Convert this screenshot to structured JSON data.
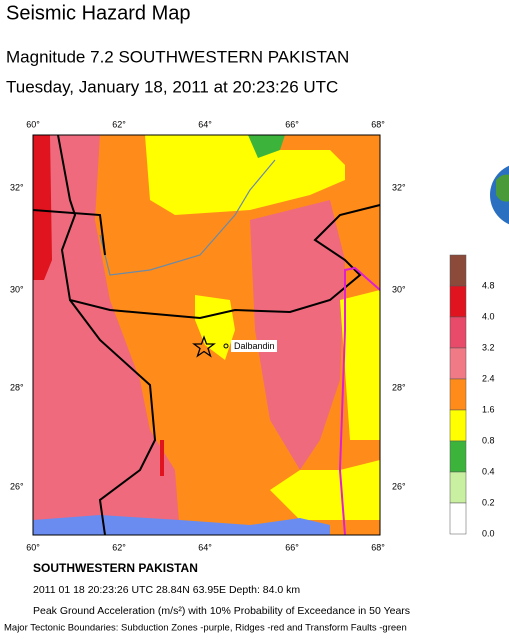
{
  "header": {
    "title": "Seismic Hazard Map",
    "subtitle": "Magnitude 7.2 SOUTHWESTERN PAKISTAN",
    "datetime": "Tuesday, January 18, 2011 at 20:23:26 UTC"
  },
  "map": {
    "lon_labels": [
      "60°",
      "62°",
      "64°",
      "66°",
      "68°"
    ],
    "lat_labels": [
      "32°",
      "30°",
      "28°",
      "26°"
    ],
    "place_label": "Dalbandin"
  },
  "legend": {
    "labels": [
      "4.8",
      "4.0",
      "3.2",
      "2.4",
      "1.6",
      "0.8",
      "0.4",
      "0.2",
      "0.0"
    ]
  },
  "footer": {
    "region": "SOUTHWESTERN PAKISTAN",
    "event": "2011 01 18 20:23:26 UTC 28.84N 63.95E Depth: 84.0 km",
    "caption": "Peak Ground Acceleration (m/s²) with 10% Probability of Exceedance in 50 Years",
    "boundaries": "Major Tectonic Boundaries: Subduction Zones -purple, Ridges -red and Transform Faults -green"
  }
}
